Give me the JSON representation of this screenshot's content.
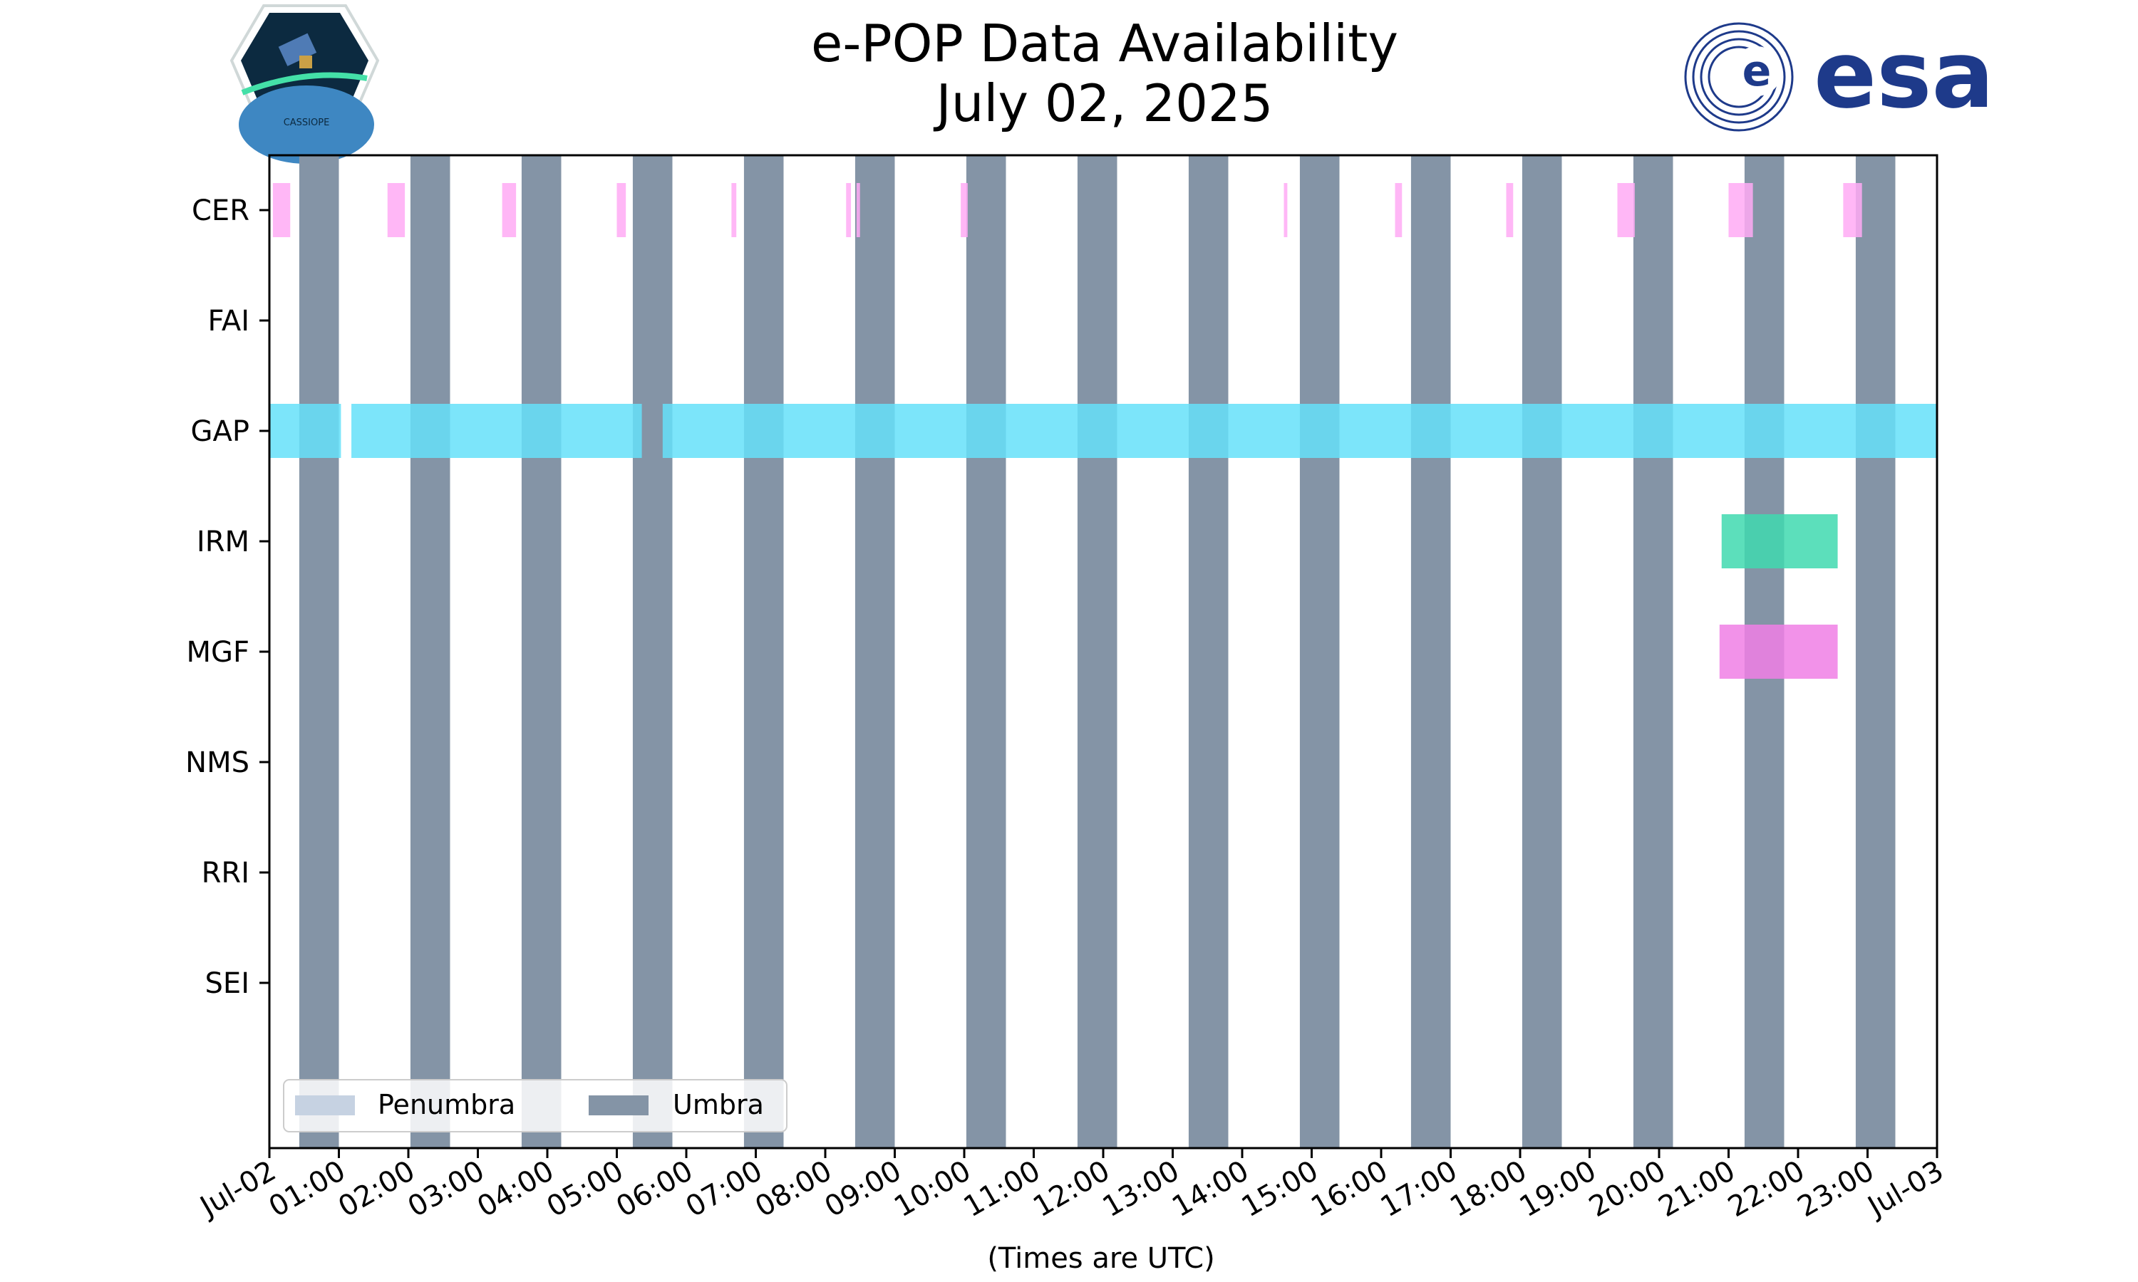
{
  "chart_data": {
    "type": "timeline",
    "title": "e-POP Data Availability",
    "subtitle": "July 02, 2025",
    "xlabel": "(Times are UTC)",
    "xlim_hours": [
      0,
      24
    ],
    "x_tick_labels": [
      "Jul-02",
      "01:00",
      "02:00",
      "03:00",
      "04:00",
      "05:00",
      "06:00",
      "07:00",
      "08:00",
      "09:00",
      "10:00",
      "11:00",
      "12:00",
      "13:00",
      "14:00",
      "15:00",
      "16:00",
      "17:00",
      "18:00",
      "19:00",
      "20:00",
      "21:00",
      "22:00",
      "23:00",
      "Jul-03"
    ],
    "instruments": [
      "CER",
      "FAI",
      "GAP",
      "IRM",
      "MGF",
      "NMS",
      "RRI",
      "SEI"
    ],
    "instrument_colors": {
      "CER": "#ffaaf5",
      "GAP": "#65e0f9",
      "IRM": "#40d9af",
      "MGF": "#f07fe5"
    },
    "umbra_color": "#8494a6",
    "penumbra_color": "#c6d2e2",
    "umbra_intervals": [
      [
        0.43,
        1.0
      ],
      [
        2.03,
        2.6
      ],
      [
        3.63,
        4.2
      ],
      [
        5.23,
        5.8
      ],
      [
        6.83,
        7.4
      ],
      [
        8.43,
        9.0
      ],
      [
        10.03,
        10.6
      ],
      [
        11.63,
        12.2
      ],
      [
        13.23,
        13.8
      ],
      [
        14.83,
        15.4
      ],
      [
        16.43,
        17.0
      ],
      [
        18.03,
        18.6
      ],
      [
        19.63,
        20.2
      ],
      [
        21.23,
        21.8
      ],
      [
        22.83,
        23.4
      ]
    ],
    "availability": {
      "CER": [
        [
          0.05,
          0.3
        ],
        [
          1.7,
          1.95
        ],
        [
          3.35,
          3.55
        ],
        [
          5.0,
          5.13
        ],
        [
          6.65,
          6.72
        ],
        [
          8.3,
          8.37
        ],
        [
          8.45,
          8.5
        ],
        [
          9.95,
          10.05
        ],
        [
          14.6,
          14.65
        ],
        [
          16.2,
          16.3
        ],
        [
          17.8,
          17.9
        ],
        [
          19.4,
          19.65
        ],
        [
          21.0,
          21.35
        ],
        [
          22.65,
          22.92
        ]
      ],
      "FAI": [],
      "GAP": [
        [
          0.0,
          1.03
        ],
        [
          1.18,
          5.36
        ],
        [
          5.66,
          24.0
        ]
      ],
      "IRM": [
        [
          20.9,
          22.57
        ]
      ],
      "MGF": [
        [
          20.87,
          22.57
        ]
      ],
      "NMS": [],
      "RRI": [],
      "SEI": []
    },
    "legend": {
      "position": "lower-left",
      "items": [
        {
          "label": "Penumbra",
          "color": "#c6d2e2"
        },
        {
          "label": "Umbra",
          "color": "#8494a6"
        }
      ]
    }
  },
  "logos": {
    "left": "CASSIOPE",
    "right": "esa"
  }
}
